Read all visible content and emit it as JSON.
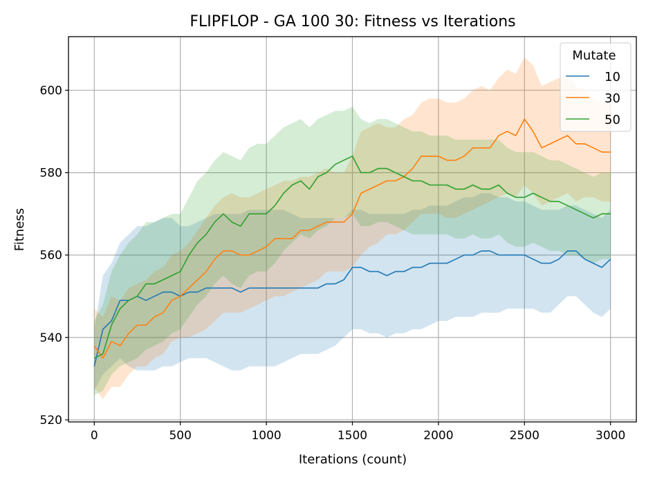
{
  "chart_data": {
    "type": "line",
    "title": "FLIPFLOP - GA 100 30: Fitness vs Iterations",
    "xlabel": "Iterations (count)",
    "ylabel": "Fitness",
    "xlim": [
      -150,
      3150
    ],
    "ylim": [
      519.5,
      613
    ],
    "xticks": [
      0,
      500,
      1000,
      1500,
      2000,
      2500,
      3000
    ],
    "yticks": [
      520,
      540,
      560,
      580,
      600
    ],
    "grid": true,
    "legend": {
      "title": "Mutate",
      "placement": "top-right"
    },
    "x": [
      0,
      50,
      100,
      150,
      200,
      250,
      300,
      350,
      400,
      450,
      500,
      550,
      600,
      650,
      700,
      750,
      800,
      850,
      900,
      950,
      1000,
      1050,
      1100,
      1150,
      1200,
      1250,
      1300,
      1350,
      1400,
      1450,
      1500,
      1550,
      1600,
      1650,
      1700,
      1750,
      1800,
      1850,
      1900,
      1950,
      2000,
      2050,
      2100,
      2150,
      2200,
      2250,
      2300,
      2350,
      2400,
      2450,
      2500,
      2550,
      2600,
      2650,
      2700,
      2750,
      2800,
      2850,
      2900,
      2950,
      3000
    ],
    "series": [
      {
        "name": "10",
        "color": "#1f77b4",
        "band_color": "#1f77b4",
        "values": [
          533,
          542,
          544,
          549,
          549,
          550,
          549,
          550,
          551,
          551,
          550,
          551,
          551,
          552,
          552,
          552,
          552,
          551,
          552,
          552,
          552,
          552,
          552,
          552,
          552,
          552,
          552,
          553,
          553,
          554,
          557,
          557,
          556,
          556,
          555,
          556,
          556,
          557,
          557,
          558,
          558,
          558,
          559,
          560,
          560,
          561,
          561,
          560,
          560,
          560,
          560,
          559,
          558,
          558,
          559,
          561,
          561,
          559,
          558,
          557,
          559
        ],
        "lower": [
          527,
          531,
          533,
          535,
          533,
          532,
          532,
          532,
          533,
          533,
          534,
          535,
          535,
          535,
          534,
          533,
          532,
          532,
          533,
          533,
          533,
          533,
          534,
          535,
          536,
          536,
          536,
          537,
          538,
          540,
          542,
          542,
          541,
          541,
          540,
          541,
          541,
          542,
          542,
          543,
          544,
          544,
          545,
          545,
          545,
          546,
          546,
          546,
          547,
          547,
          547,
          547,
          546,
          546,
          548,
          550,
          550,
          548,
          546,
          545,
          547
        ],
        "upper": [
          542,
          555,
          558,
          563,
          565,
          567,
          567,
          568,
          569,
          569,
          567,
          567,
          568,
          569,
          570,
          570,
          570,
          570,
          571,
          571,
          571,
          571,
          571,
          570,
          569,
          569,
          569,
          569,
          569,
          569,
          571,
          571,
          570,
          570,
          570,
          570,
          570,
          571,
          571,
          572,
          572,
          572,
          573,
          574,
          574,
          575,
          575,
          574,
          574,
          573,
          573,
          572,
          571,
          571,
          571,
          572,
          572,
          571,
          570,
          569,
          571
        ]
      },
      {
        "name": "30",
        "color": "#ff7f0e",
        "band_color": "#ff7f0e",
        "values": [
          538,
          535,
          539,
          538,
          541,
          543,
          543,
          545,
          546,
          549,
          550,
          552,
          554,
          556,
          559,
          561,
          561,
          560,
          560,
          561,
          562,
          564,
          564,
          564,
          566,
          566,
          567,
          568,
          568,
          568,
          570,
          575,
          576,
          577,
          578,
          578,
          579,
          581,
          584,
          584,
          584,
          583,
          583,
          584,
          586,
          586,
          586,
          589,
          590,
          589,
          593,
          590,
          586,
          587,
          588,
          589,
          587,
          587,
          586,
          585,
          585
        ],
        "lower": [
          528,
          525,
          528,
          528,
          531,
          533,
          533,
          535,
          536,
          539,
          540,
          540,
          541,
          542,
          544,
          546,
          546,
          546,
          547,
          548,
          549,
          550,
          550,
          551,
          552,
          553,
          554,
          556,
          556,
          556,
          557,
          560,
          562,
          563,
          565,
          565,
          566,
          568,
          570,
          570,
          570,
          569,
          569,
          570,
          571,
          572,
          573,
          574,
          575,
          574,
          577,
          575,
          572,
          573,
          574,
          575,
          573,
          574,
          574,
          573,
          573
        ],
        "upper": [
          547,
          545,
          550,
          549,
          552,
          553,
          554,
          556,
          557,
          560,
          561,
          563,
          566,
          569,
          572,
          574,
          575,
          574,
          574,
          575,
          576,
          577,
          578,
          578,
          579,
          579,
          580,
          581,
          580,
          580,
          584,
          590,
          591,
          592,
          591,
          591,
          593,
          594,
          597,
          598,
          598,
          597,
          597,
          598,
          600,
          601,
          600,
          603,
          605,
          604,
          608,
          606,
          601,
          602,
          603,
          604,
          601,
          600,
          598,
          597,
          597
        ]
      },
      {
        "name": "50",
        "color": "#2ca02c",
        "band_color": "#2ca02c",
        "values": [
          535,
          536,
          543,
          547,
          549,
          550,
          553,
          553,
          554,
          555,
          556,
          560,
          563,
          565,
          568,
          570,
          568,
          567,
          570,
          570,
          570,
          572,
          575,
          577,
          578,
          576,
          579,
          580,
          582,
          583,
          584,
          580,
          580,
          581,
          581,
          580,
          579,
          578,
          578,
          577,
          577,
          577,
          576,
          576,
          577,
          576,
          576,
          577,
          575,
          574,
          574,
          575,
          574,
          573,
          573,
          572,
          571,
          570,
          569,
          570,
          570
        ],
        "lower": [
          526,
          527,
          531,
          533,
          534,
          535,
          537,
          538,
          539,
          541,
          542,
          545,
          548,
          550,
          553,
          555,
          553,
          552,
          555,
          556,
          556,
          558,
          561,
          563,
          565,
          564,
          566,
          567,
          569,
          569,
          570,
          567,
          567,
          568,
          568,
          567,
          566,
          565,
          565,
          565,
          565,
          565,
          564,
          564,
          565,
          564,
          564,
          565,
          563,
          562,
          562,
          563,
          562,
          561,
          561,
          560,
          560,
          559,
          558,
          559,
          559
        ],
        "upper": [
          544,
          548,
          556,
          560,
          563,
          565,
          568,
          568,
          569,
          570,
          570,
          574,
          578,
          580,
          583,
          585,
          584,
          583,
          586,
          587,
          587,
          589,
          591,
          592,
          593,
          591,
          593,
          594,
          595,
          595,
          596,
          593,
          592,
          593,
          593,
          592,
          591,
          590,
          590,
          589,
          589,
          589,
          588,
          588,
          588,
          588,
          588,
          588,
          586,
          585,
          585,
          585,
          584,
          583,
          583,
          582,
          581,
          580,
          579,
          580,
          580
        ]
      }
    ]
  }
}
